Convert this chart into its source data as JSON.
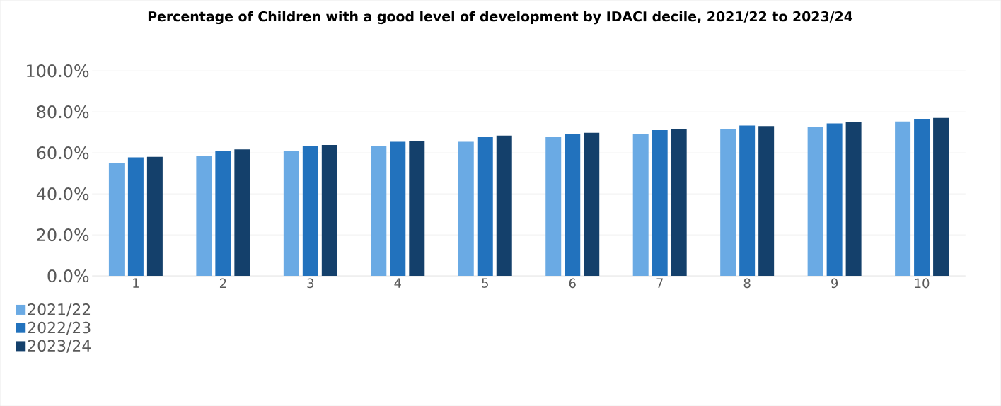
{
  "chart_data": {
    "type": "bar",
    "title": "Percentage of Children with a good level of development by IDACI decile, 2021/22 to 2023/24",
    "categories": [
      "1",
      "2",
      "3",
      "4",
      "5",
      "6",
      "7",
      "8",
      "9",
      "10"
    ],
    "series": [
      {
        "name": "2021/22",
        "color": "#6aaae4",
        "values": [
          55.0,
          58.6,
          61.1,
          63.5,
          65.4,
          67.6,
          69.3,
          71.4,
          72.7,
          75.3
        ]
      },
      {
        "name": "2022/23",
        "color": "#2272bd",
        "values": [
          57.8,
          61.0,
          63.5,
          65.4,
          67.7,
          69.3,
          71.1,
          73.3,
          74.4,
          76.6
        ]
      },
      {
        "name": "2023/24",
        "color": "#14406b",
        "values": [
          58.1,
          61.7,
          63.8,
          65.7,
          68.4,
          69.8,
          71.8,
          73.1,
          75.2,
          77.0
        ]
      }
    ],
    "ylim": [
      0,
      100
    ],
    "yticks": [
      {
        "value": 0,
        "label": "0.0%"
      },
      {
        "value": 20,
        "label": "20.0%"
      },
      {
        "value": 40,
        "label": "40.0%"
      },
      {
        "value": 60,
        "label": "60.0%"
      },
      {
        "value": 80,
        "label": "80.0%"
      },
      {
        "value": 100,
        "label": "100.0%"
      }
    ],
    "grid": "y",
    "legend": "bottom left"
  }
}
